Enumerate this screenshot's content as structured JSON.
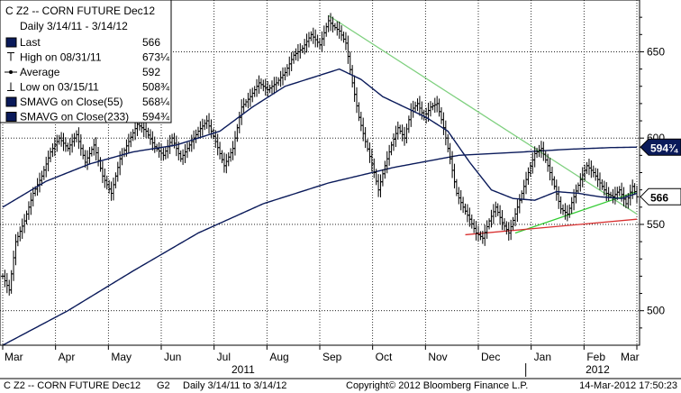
{
  "chart_data": {
    "type": "line",
    "title": "C Z2 -- CORN FUTURE  Dec12",
    "subtitle": "Daily 3/14/11 - 3/14/12",
    "legend": [
      {
        "marker": "box",
        "label": "Last",
        "value": "566"
      },
      {
        "marker": "high",
        "label": "High on 08/31/11",
        "value": "673¼"
      },
      {
        "marker": "avg",
        "label": "Average",
        "value": "592"
      },
      {
        "marker": "low",
        "label": "Low on 03/15/11",
        "value": "508¾"
      },
      {
        "marker": "box",
        "label": "SMAVG on Close(55)",
        "value": "568¼"
      },
      {
        "marker": "box",
        "label": "SMAVG on Close(233)",
        "value": "594¾"
      }
    ],
    "legend_placement": "top-left",
    "x_months": [
      "Mar",
      "Apr",
      "May",
      "Jun",
      "Jul",
      "Aug",
      "Sep",
      "Oct",
      "Nov",
      "Dec",
      "Jan",
      "Feb",
      "Mar"
    ],
    "x_years": [
      "2011",
      "2012"
    ],
    "y_ticks": [
      500,
      550,
      600,
      650
    ],
    "ylim": [
      480,
      680
    ],
    "y_axis_side": "right",
    "grid": "dotted",
    "price": [
      [
        0,
        520
      ],
      [
        3,
        512
      ],
      [
        6,
        540
      ],
      [
        10,
        552
      ],
      [
        14,
        568
      ],
      [
        18,
        578
      ],
      [
        22,
        592
      ],
      [
        26,
        600
      ],
      [
        30,
        594
      ],
      [
        34,
        602
      ],
      [
        38,
        586
      ],
      [
        42,
        596
      ],
      [
        46,
        578
      ],
      [
        50,
        568
      ],
      [
        54,
        588
      ],
      [
        58,
        598
      ],
      [
        62,
        608
      ],
      [
        66,
        604
      ],
      [
        70,
        595
      ],
      [
        74,
        590
      ],
      [
        78,
        600
      ],
      [
        82,
        588
      ],
      [
        86,
        596
      ],
      [
        90,
        604
      ],
      [
        94,
        610
      ],
      [
        98,
        598
      ],
      [
        102,
        584
      ],
      [
        106,
        594
      ],
      [
        110,
        618
      ],
      [
        114,
        624
      ],
      [
        118,
        632
      ],
      [
        122,
        628
      ],
      [
        126,
        632
      ],
      [
        130,
        638
      ],
      [
        134,
        648
      ],
      [
        138,
        652
      ],
      [
        142,
        660
      ],
      [
        146,
        654
      ],
      [
        150,
        668
      ],
      [
        152,
        665
      ],
      [
        155,
        662
      ],
      [
        158,
        655
      ],
      [
        161,
        632
      ],
      [
        164,
        612
      ],
      [
        167,
        598
      ],
      [
        170,
        585
      ],
      [
        173,
        570
      ],
      [
        176,
        584
      ],
      [
        179,
        596
      ],
      [
        182,
        606
      ],
      [
        185,
        600
      ],
      [
        188,
        616
      ],
      [
        191,
        620
      ],
      [
        194,
        612
      ],
      [
        197,
        618
      ],
      [
        200,
        620
      ],
      [
        203,
        606
      ],
      [
        206,
        588
      ],
      [
        209,
        568
      ],
      [
        212,
        560
      ],
      [
        215,
        553
      ],
      [
        218,
        545
      ],
      [
        221,
        542
      ],
      [
        224,
        552
      ],
      [
        227,
        560
      ],
      [
        230,
        551
      ],
      [
        233,
        545
      ],
      [
        236,
        556
      ],
      [
        239,
        568
      ],
      [
        242,
        580
      ],
      [
        245,
        591
      ],
      [
        248,
        594
      ],
      [
        251,
        584
      ],
      [
        254,
        572
      ],
      [
        257,
        559
      ],
      [
        260,
        556
      ],
      [
        263,
        566
      ],
      [
        266,
        576
      ],
      [
        269,
        584
      ],
      [
        272,
        580
      ],
      [
        275,
        574
      ],
      [
        278,
        568
      ],
      [
        281,
        566
      ],
      [
        284,
        570
      ],
      [
        287,
        562
      ],
      [
        290,
        572
      ],
      [
        292,
        566
      ]
    ],
    "sma55": [
      [
        0,
        560
      ],
      [
        20,
        575
      ],
      [
        40,
        585
      ],
      [
        60,
        592
      ],
      [
        80,
        596
      ],
      [
        100,
        604
      ],
      [
        115,
        618
      ],
      [
        130,
        630
      ],
      [
        145,
        636
      ],
      [
        155,
        640
      ],
      [
        165,
        634
      ],
      [
        175,
        624
      ],
      [
        185,
        618
      ],
      [
        195,
        612
      ],
      [
        205,
        604
      ],
      [
        215,
        586
      ],
      [
        225,
        570
      ],
      [
        235,
        565
      ],
      [
        245,
        564
      ],
      [
        255,
        569
      ],
      [
        265,
        568
      ],
      [
        275,
        566
      ],
      [
        285,
        565
      ],
      [
        292,
        568
      ]
    ],
    "sma233": [
      [
        0,
        480
      ],
      [
        30,
        500
      ],
      [
        60,
        523
      ],
      [
        90,
        545
      ],
      [
        120,
        562
      ],
      [
        150,
        574
      ],
      [
        180,
        583
      ],
      [
        210,
        590
      ],
      [
        240,
        592
      ],
      [
        260,
        593.5
      ],
      [
        280,
        594.5
      ],
      [
        292,
        594.75
      ]
    ],
    "trendlines": [
      {
        "color": "#7fd07f",
        "from": [
          150,
          671
        ],
        "to": [
          292,
          556
        ]
      },
      {
        "color": "#33cc33",
        "from": [
          236,
          545
        ],
        "to": [
          292,
          569
        ]
      },
      {
        "color": "#d83030",
        "from": [
          213,
          544
        ],
        "to": [
          292,
          553
        ]
      }
    ],
    "tags": [
      {
        "label": "594¾",
        "value": 594.75,
        "style": "dark"
      },
      {
        "label": "566",
        "value": 566,
        "style": "light"
      }
    ],
    "footer": {
      "left": "C Z2 -- CORN FUTURE  Dec12",
      "g2": "G2",
      "range": "Daily  3/14/11 to 3/14/12",
      "copyright": "Copyright© 2012 Bloomberg Finance L.P.",
      "timestamp": "14-Mar-2012 17:50:23"
    }
  }
}
